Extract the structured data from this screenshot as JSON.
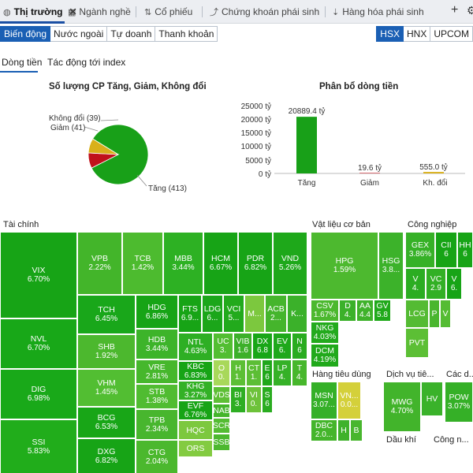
{
  "tabs": [
    {
      "label": "Thị trường",
      "icon": "globe-icon",
      "active": true
    },
    {
      "label": "Ngành nghề",
      "icon": "table-icon",
      "active": false
    },
    {
      "label": "Cổ phiếu",
      "icon": "sort-icon",
      "active": false
    },
    {
      "label": "Chứng khoán phái sinh",
      "icon": "chart-line-icon",
      "active": false
    },
    {
      "label": "Hàng hóa phái sinh",
      "icon": "sort-numeric-icon",
      "active": false
    }
  ],
  "subtabs": [
    "Biến động",
    "Nước ngoài",
    "Tự doanh",
    "Thanh khoản"
  ],
  "exchanges": [
    "HSX",
    "HNX",
    "UPCOM"
  ],
  "panel_tabs": [
    "Dòng tiền",
    "Tác động tới index"
  ],
  "pie": {
    "title": "Số lượng CP Tăng, Giảm, Không đổi",
    "labels": {
      "unchanged": "Không đổi (39)",
      "down": "Giảm (41)",
      "up": "Tăng (413)"
    },
    "colors": {
      "up": "#18a018",
      "down": "#c0121b",
      "unchanged": "#d9b01a"
    }
  },
  "bar": {
    "title": "Phân bổ dòng tiền",
    "yticks": [
      "25000 tỷ",
      "20000 tỷ",
      "15000 tỷ",
      "10000 tỷ",
      "5000 tỷ",
      "0 tỷ"
    ],
    "value_labels": [
      "20889.4 tỷ",
      "19.6 tỷ",
      "555.0 tỷ"
    ]
  },
  "chart_data": [
    {
      "type": "pie",
      "title": "Số lượng CP Tăng, Giảm, Không đổi",
      "labels": [
        "Tăng",
        "Giảm",
        "Không đổi"
      ],
      "values": [
        413,
        41,
        39
      ],
      "colors": [
        "#18a018",
        "#c0121b",
        "#d9b01a"
      ]
    },
    {
      "type": "bar",
      "title": "Phân bổ dòng tiền",
      "categories": [
        "Tăng",
        "Giảm",
        "Kh. đổi"
      ],
      "values": [
        20889.4,
        19.6,
        555.0
      ],
      "ylim": [
        0,
        25000
      ],
      "colors": [
        "#18a018",
        "#c0121b",
        "#d9b01a"
      ]
    }
  ],
  "treemap": {
    "sections": {
      "taichinh": "Tài chính",
      "vatlieu": "Vật liệu cơ bản",
      "congnghiep": "Công nghiệp",
      "hangtieudung": "Hàng tiêu dùng",
      "dichvu": "Dịch vụ tiê...",
      "cacdv": "Các d...",
      "daukhi": "Dầu khí",
      "congnghe": "Công n..."
    },
    "cells": [
      {
        "t": "VIX",
        "p": "6.70%"
      },
      {
        "t": "NVL",
        "p": "6.70%"
      },
      {
        "t": "DIG",
        "p": "6.98%"
      },
      {
        "t": "SSI",
        "p": "5.83%"
      },
      {
        "t": "VPB",
        "p": "2.22%"
      },
      {
        "t": "TCB",
        "p": "1.42%"
      },
      {
        "t": "MBB",
        "p": "3.44%"
      },
      {
        "t": "HCM",
        "p": "6.67%"
      },
      {
        "t": "PDR",
        "p": "6.82%"
      },
      {
        "t": "VND",
        "p": "5.26%"
      },
      {
        "t": "TCH",
        "p": "6.45%"
      },
      {
        "t": "SHB",
        "p": "1.92%"
      },
      {
        "t": "VHM",
        "p": "1.45%"
      },
      {
        "t": "BCG",
        "p": "6.53%"
      },
      {
        "t": "DXG",
        "p": "6.82%"
      },
      {
        "t": "HDG",
        "p": "6.86%"
      },
      {
        "t": "HDB",
        "p": "3.44%"
      },
      {
        "t": "VRE",
        "p": "2.81%"
      },
      {
        "t": "STB",
        "p": "1.38%"
      },
      {
        "t": "TPB",
        "p": "2.34%"
      },
      {
        "t": "CTG",
        "p": "2.04%"
      },
      {
        "t": "FTS",
        "p": "6.9..."
      },
      {
        "t": "LDG",
        "p": "6..."
      },
      {
        "t": "VCI",
        "p": "5..."
      },
      {
        "t": "M...",
        "p": ""
      },
      {
        "t": "ACB",
        "p": "2..."
      },
      {
        "t": "K...",
        "p": ""
      },
      {
        "t": "NTL",
        "p": "4.63%"
      },
      {
        "t": "KBC",
        "p": "6.83%"
      },
      {
        "t": "KHG",
        "p": "3.27%"
      },
      {
        "t": "EVF",
        "p": "6.76%"
      },
      {
        "t": "HQC",
        "p": ""
      },
      {
        "t": "ORS",
        "p": ""
      },
      {
        "t": "UC",
        "p": "3."
      },
      {
        "t": "VIB",
        "p": "1.6"
      },
      {
        "t": "DX",
        "p": "6.8"
      },
      {
        "t": "EV",
        "p": "6."
      },
      {
        "t": "N",
        "p": "6"
      },
      {
        "t": "O",
        "p": "0."
      },
      {
        "t": "H",
        "p": "1."
      },
      {
        "t": "CT",
        "p": "1."
      },
      {
        "t": "E",
        "p": "6"
      },
      {
        "t": "LP",
        "p": "4."
      },
      {
        "t": "T",
        "p": "4."
      },
      {
        "t": "BI",
        "p": "3."
      },
      {
        "t": "VI",
        "p": "0."
      },
      {
        "t": "S",
        "p": "6"
      },
      {
        "t": "VDS",
        "p": ""
      },
      {
        "t": "NAB",
        "p": ""
      },
      {
        "t": "SCR",
        "p": ""
      },
      {
        "t": "SSB",
        "p": ""
      },
      {
        "t": "HPG",
        "p": "1.59%"
      },
      {
        "t": "HSG",
        "p": "3.8..."
      },
      {
        "t": "CSV",
        "p": "1.67%"
      },
      {
        "t": "D",
        "p": "4."
      },
      {
        "t": "AA",
        "p": "4.4"
      },
      {
        "t": "GV",
        "p": "5.8"
      },
      {
        "t": "NKG",
        "p": "4.03%"
      },
      {
        "t": "DCM",
        "p": "4.19%"
      },
      {
        "t": "GEX",
        "p": "3.86%"
      },
      {
        "t": "CII",
        "p": "6"
      },
      {
        "t": "HH",
        "p": "6"
      },
      {
        "t": "V",
        "p": "4."
      },
      {
        "t": "VC",
        "p": "2.9"
      },
      {
        "t": "V",
        "p": "6."
      },
      {
        "t": "LCG",
        "p": ""
      },
      {
        "t": "P",
        "p": ""
      },
      {
        "t": "V",
        "p": ""
      },
      {
        "t": "PVT",
        "p": ""
      },
      {
        "t": "MSN",
        "p": "3.07..."
      },
      {
        "t": "VN...",
        "p": "0.0..."
      },
      {
        "t": "DBC",
        "p": "2.0..."
      },
      {
        "t": "H",
        "p": ""
      },
      {
        "t": "B",
        "p": ""
      },
      {
        "t": "HV",
        "p": ""
      },
      {
        "t": "MWG",
        "p": "4.70%"
      },
      {
        "t": "POW",
        "p": "3.07%"
      }
    ]
  }
}
